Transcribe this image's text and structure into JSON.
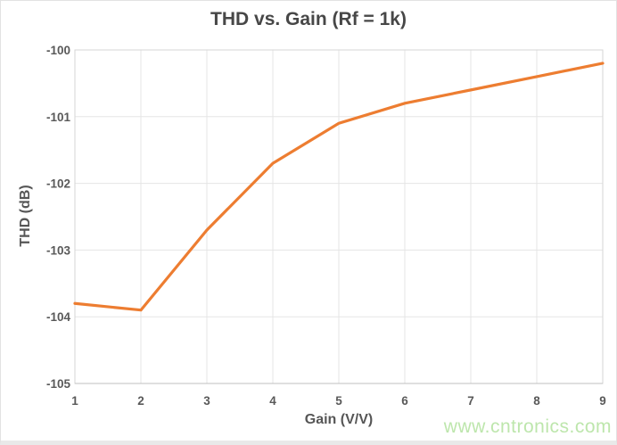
{
  "chart": {
    "title": "THD vs. Gain (Rf = 1k)",
    "watermark": "www.cntronics.com"
  },
  "chart_data": {
    "type": "line",
    "title": "THD vs. Gain (Rf = 1k)",
    "xlabel": "Gain (V/V)",
    "ylabel": "THD (dB)",
    "x": [
      1,
      2,
      3,
      4,
      5,
      6,
      7,
      8,
      9
    ],
    "series": [
      {
        "name": "THD",
        "values": [
          -103.8,
          -103.9,
          -102.7,
          -101.7,
          -101.1,
          -100.8,
          -100.6,
          -100.4,
          -100.2
        ]
      }
    ],
    "xlim": [
      1,
      9
    ],
    "ylim": [
      -105,
      -100
    ],
    "x_ticks": [
      1,
      2,
      3,
      4,
      5,
      6,
      7,
      8,
      9
    ],
    "y_ticks": [
      -100,
      -101,
      -102,
      -103,
      -104,
      -105
    ],
    "grid": true,
    "legend": "none"
  },
  "colors": {
    "line": "#ED7D31",
    "grid": "#E5E5E5",
    "plot_border": "#D6D6D6",
    "axis_line": "#BFBFBF",
    "tick_text": "#595959",
    "title_text": "#474747",
    "axis_title_text": "#565656",
    "watermark_text": "#BDE6AC",
    "background": "#FFFFFF"
  }
}
